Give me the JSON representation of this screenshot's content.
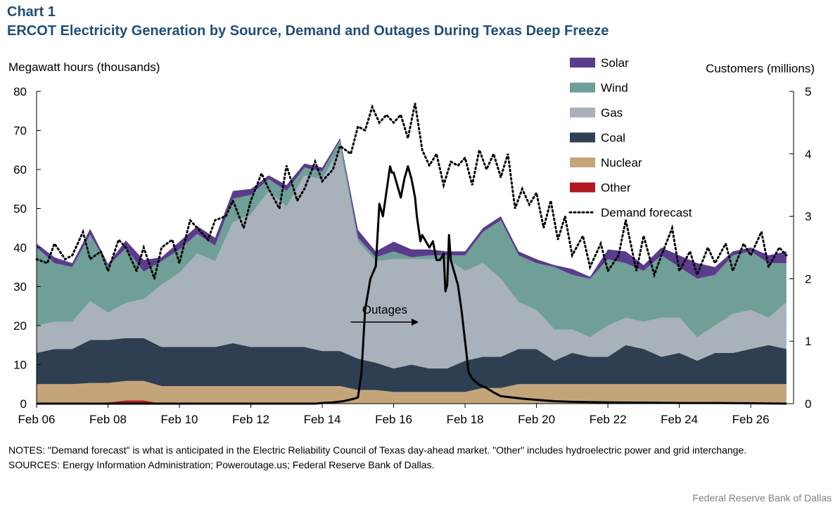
{
  "header": {
    "chart_number": "Chart 1",
    "title": "ERCOT Electricity Generation by Source, Demand and Outages During Texas Deep Freeze"
  },
  "axes": {
    "left_title": "Megawatt hours (thousands)",
    "right_title": "Customers (millions)"
  },
  "annotation": {
    "outages_label": "Outages"
  },
  "notes": {
    "notes_text": "NOTES: \"Demand forecast\" is what is anticipated in the Electric Reliability Council of Texas day-ahead market. \"Other\" includes hydroelectric power and grid interchange.",
    "sources_text": "SOURCES: Energy Information Administration; Poweroutage.us; Federal Reserve Bank of Dallas."
  },
  "credit": "Federal Reserve Bank of Dallas",
  "colors": {
    "solar": "#5b3b8c",
    "wind": "#6f9f97",
    "gas": "#a9b1bb",
    "coal": "#2e3f52",
    "nuclear": "#c4a57a",
    "other": "#b01820",
    "demand": "#000000",
    "outages": "#000000",
    "title": "#1f4e79"
  },
  "chart_data": {
    "type": "area",
    "x": [
      6,
      6.5,
      7,
      7.5,
      8,
      8.5,
      9,
      9.5,
      10,
      10.5,
      11,
      11.5,
      12,
      12.5,
      13,
      13.5,
      14,
      14.5,
      15,
      15.5,
      16,
      16.5,
      17,
      17.5,
      18,
      18.5,
      19,
      19.5,
      20,
      20.5,
      21,
      21.5,
      22,
      22.5,
      23,
      23.5,
      24,
      24.5,
      25,
      25.5,
      26,
      26.5,
      27
    ],
    "x_tick_labels": [
      "Feb 06",
      "Feb 08",
      "Feb 10",
      "Feb 12",
      "Feb 14",
      "Feb 16",
      "Feb 18",
      "Feb 20",
      "Feb 22",
      "Feb 24",
      "Feb 26"
    ],
    "x_tick_values": [
      6,
      8,
      10,
      12,
      14,
      16,
      18,
      20,
      22,
      24,
      26
    ],
    "xlim": [
      6,
      27.2
    ],
    "y_left_ticks": [
      "0",
      "10",
      "20",
      "30",
      "40",
      "50",
      "60",
      "70",
      "80"
    ],
    "ylim_left": [
      0,
      80
    ],
    "y_right_ticks": [
      "0",
      "1",
      "2",
      "3",
      "4",
      "5"
    ],
    "ylim_right": [
      0,
      5
    ],
    "stack_order": [
      "Other",
      "Nuclear",
      "Coal",
      "Gas",
      "Wind",
      "Solar"
    ],
    "series": [
      {
        "name": "Solar",
        "color_key": "solar",
        "values": [
          1,
          1.5,
          1,
          1.5,
          0.5,
          2,
          3,
          1,
          2,
          2,
          2,
          2,
          1.5,
          1,
          1.5,
          1,
          1,
          0.5,
          2,
          1.5,
          2.5,
          2,
          1.5,
          1,
          1,
          1,
          1,
          1,
          1,
          0.5,
          1.5,
          0.5,
          2.5,
          3,
          1.5,
          2,
          3,
          4,
          2,
          1,
          1,
          2,
          3
        ]
      },
      {
        "name": "Wind",
        "color_key": "wind",
        "values": [
          20,
          15,
          14,
          17,
          12,
          14,
          7,
          6,
          6,
          5,
          4,
          6,
          5,
          3,
          4,
          2,
          2,
          2,
          1,
          1,
          2,
          0.5,
          1,
          1,
          4,
          8,
          15,
          12,
          12,
          16,
          14,
          15,
          17,
          14,
          13,
          16,
          13,
          15,
          13,
          15,
          15,
          14,
          10
        ]
      },
      {
        "name": "Gas",
        "color_key": "gas",
        "values": [
          7,
          7,
          7,
          10,
          7,
          9,
          10,
          16,
          19,
          24,
          22,
          31,
          34,
          40,
          36,
          44,
          44,
          52,
          30,
          26,
          28,
          27,
          28,
          28,
          23,
          24,
          20,
          12,
          10,
          8,
          6,
          5,
          8,
          7,
          7,
          10,
          9,
          6,
          7,
          10,
          10,
          7,
          12
        ]
      },
      {
        "name": "Coal",
        "color_key": "coal",
        "values": [
          8,
          9,
          9,
          11,
          11,
          11,
          11,
          10,
          10,
          10,
          10,
          11,
          10,
          10,
          10,
          10,
          9,
          9,
          8,
          7,
          6,
          7,
          6,
          6,
          8,
          8,
          8,
          9,
          9,
          6,
          8,
          7,
          7,
          10,
          9,
          7,
          8,
          6,
          8,
          8,
          9,
          10,
          9
        ]
      },
      {
        "name": "Nuclear",
        "color_key": "nuclear",
        "values": [
          5,
          5,
          5,
          5,
          5,
          5,
          5,
          4.5,
          4.5,
          4.5,
          4.5,
          4.5,
          4.5,
          4.5,
          4.5,
          4.5,
          4.5,
          4.5,
          3.5,
          3.5,
          3,
          3,
          3,
          3,
          3,
          4,
          4,
          5,
          5,
          5,
          5,
          5,
          5,
          5,
          5,
          5,
          5,
          5,
          5,
          5,
          5,
          5,
          5
        ]
      },
      {
        "name": "Other",
        "color_key": "other",
        "values": [
          0,
          0,
          0,
          0.3,
          0.3,
          0.8,
          0.8,
          0,
          0,
          0,
          0,
          0,
          0,
          0,
          0,
          0,
          0,
          0,
          0,
          0,
          0,
          0,
          0,
          0,
          0,
          0,
          0,
          0,
          0,
          0,
          0,
          0,
          0,
          0,
          0,
          0,
          0,
          0,
          0,
          0,
          0,
          0,
          0
        ]
      }
    ],
    "demand_forecast": {
      "name": "Demand forecast",
      "axis": "left",
      "x": [
        6,
        6.3,
        6.5,
        6.8,
        7,
        7.3,
        7.5,
        7.8,
        8,
        8.3,
        8.5,
        8.8,
        9,
        9.3,
        9.5,
        9.8,
        10,
        10.3,
        10.5,
        10.8,
        11,
        11.3,
        11.5,
        11.8,
        12,
        12.3,
        12.5,
        12.8,
        13,
        13.3,
        13.5,
        13.8,
        14,
        14.3,
        14.5,
        14.8,
        15,
        15.2,
        15.4,
        15.6,
        15.8,
        16,
        16.2,
        16.4,
        16.6,
        16.8,
        17,
        17.2,
        17.4,
        17.6,
        17.8,
        18,
        18.2,
        18.4,
        18.6,
        18.8,
        19,
        19.2,
        19.4,
        19.6,
        19.8,
        20,
        20.2,
        20.4,
        20.6,
        20.8,
        21,
        21.3,
        21.5,
        21.8,
        22,
        22.3,
        22.5,
        22.8,
        23,
        23.3,
        23.5,
        23.8,
        24,
        24.3,
        24.5,
        24.8,
        25,
        25.3,
        25.5,
        25.8,
        26,
        26.3,
        26.5,
        26.8,
        27
      ],
      "values": [
        37,
        36,
        41,
        37,
        38,
        44,
        37,
        39,
        34,
        42,
        40,
        34,
        40,
        32,
        40,
        42,
        36,
        47,
        45,
        42,
        47,
        48,
        52,
        45,
        52,
        59,
        55,
        50,
        61,
        52,
        55,
        62,
        57,
        60,
        66,
        64,
        71,
        70,
        76,
        72,
        74,
        72,
        74,
        68,
        77,
        65,
        61,
        64,
        56,
        62,
        61,
        63,
        56,
        65,
        60,
        64,
        58,
        64,
        50,
        55,
        51,
        54,
        45,
        52,
        42,
        48,
        38,
        43,
        35,
        41,
        34,
        38,
        47,
        34,
        43,
        33,
        38,
        45,
        34,
        39,
        33,
        40,
        36,
        41,
        34,
        41,
        38,
        44,
        35,
        40,
        38
      ]
    },
    "outages": {
      "name": "Outages",
      "axis": "right",
      "x": [
        6,
        13.8,
        14,
        14.3,
        14.6,
        14.9,
        15,
        15.1,
        15.2,
        15.35,
        15.5,
        15.6,
        15.7,
        15.8,
        15.9,
        15.95,
        16,
        16.1,
        16.2,
        16.3,
        16.4,
        16.5,
        16.6,
        16.65,
        16.7,
        16.75,
        16.8,
        16.9,
        17,
        17.1,
        17.2,
        17.3,
        17.4,
        17.45,
        17.5,
        17.55,
        17.6,
        17.7,
        17.8,
        17.9,
        18,
        18.1,
        18.2,
        18.4,
        18.6,
        18.8,
        19,
        19.3,
        19.6,
        20,
        20.5,
        21,
        22,
        23,
        24,
        25,
        26,
        27
      ],
      "values": [
        0,
        0,
        0.01,
        0.02,
        0.04,
        0.08,
        0.1,
        0.5,
        1.5,
        2.0,
        2.2,
        3.2,
        3.0,
        3.4,
        3.8,
        3.7,
        3.7,
        3.5,
        3.3,
        3.6,
        3.8,
        3.6,
        3.3,
        3.0,
        2.8,
        2.6,
        2.7,
        2.6,
        2.5,
        2.6,
        2.3,
        2.3,
        2.4,
        1.8,
        1.9,
        2.7,
        2.3,
        2.1,
        1.9,
        1.5,
        1.0,
        0.5,
        0.4,
        0.3,
        0.25,
        0.18,
        0.12,
        0.1,
        0.08,
        0.06,
        0.04,
        0.03,
        0.02,
        0.015,
        0.01,
        0.01,
        0.005,
        0
      ]
    },
    "legend": {
      "placement": "top-right",
      "entries": [
        {
          "label": "Solar",
          "color_key": "solar",
          "style": "swatch"
        },
        {
          "label": "Wind",
          "color_key": "wind",
          "style": "swatch"
        },
        {
          "label": "Gas",
          "color_key": "gas",
          "style": "swatch"
        },
        {
          "label": "Coal",
          "color_key": "coal",
          "style": "swatch"
        },
        {
          "label": "Nuclear",
          "color_key": "nuclear",
          "style": "swatch"
        },
        {
          "label": "Other",
          "color_key": "other",
          "style": "swatch"
        },
        {
          "label": "Demand forecast",
          "color_key": "demand",
          "style": "dotted"
        }
      ]
    },
    "grid": false
  }
}
